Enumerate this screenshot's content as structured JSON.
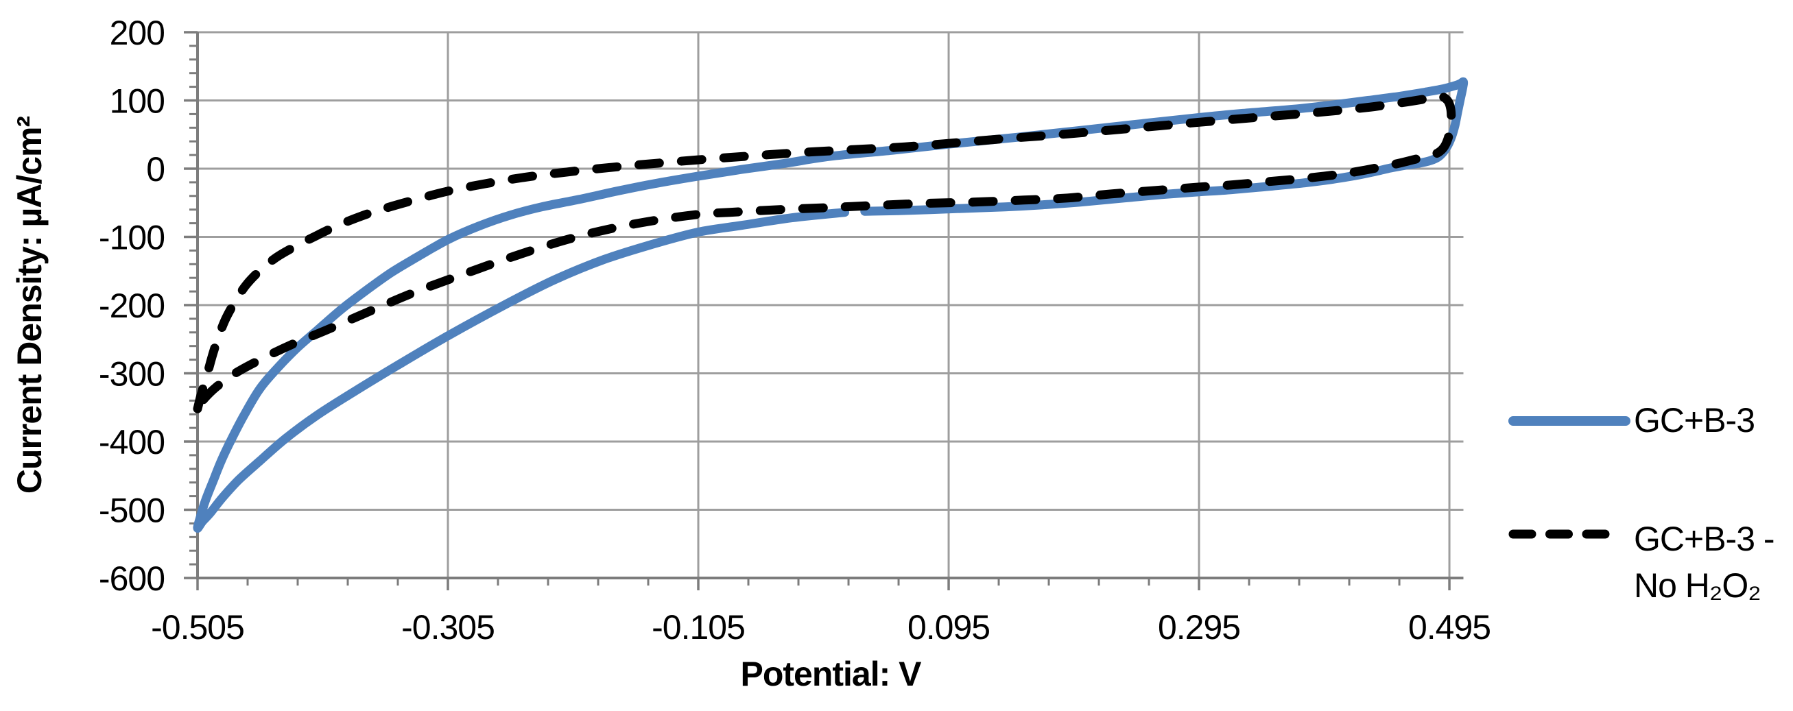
{
  "chart_data": {
    "type": "line",
    "title": "",
    "xlabel": "Potential: V",
    "ylabel": "Current Density: µA/cm²",
    "xlim": [
      -0.505,
      0.5062
    ],
    "ylim": [
      -600,
      200
    ],
    "x_ticks": [
      -0.505,
      -0.305,
      -0.105,
      0.095,
      0.295,
      0.495
    ],
    "x_tick_labels": [
      "-0.505",
      "-0.305",
      "-0.105",
      "0.095",
      "0.295",
      "0.495"
    ],
    "y_ticks": [
      200,
      100,
      0,
      -100,
      -200,
      -300,
      -400,
      -500,
      -600
    ],
    "y_tick_labels": [
      "200",
      "100",
      "0",
      "-100",
      "-200",
      "-300",
      "-400",
      "-500",
      "-600"
    ],
    "x_minor_tick_step": 0.04,
    "y_minor_tick_step": 20,
    "grid": true,
    "legend_position": "right",
    "colors": {
      "gridline": "#9E9E9E",
      "axis": "#7C7C7C",
      "tick": "#7C7C7C",
      "text": "#000000"
    },
    "series": [
      {
        "name": "GC+B-3",
        "legend_lines": [
          "GC+B-3"
        ],
        "color": "#4F81BD",
        "style": "solid",
        "points": [
          [
            0.012,
            -64
          ],
          [
            -0.03,
            -72
          ],
          [
            -0.07,
            -83
          ],
          [
            -0.105,
            -93
          ],
          [
            -0.14,
            -110
          ],
          [
            -0.18,
            -133
          ],
          [
            -0.22,
            -163
          ],
          [
            -0.26,
            -200
          ],
          [
            -0.305,
            -245
          ],
          [
            -0.345,
            -288
          ],
          [
            -0.38,
            -327
          ],
          [
            -0.41,
            -362
          ],
          [
            -0.435,
            -396
          ],
          [
            -0.455,
            -428
          ],
          [
            -0.472,
            -456
          ],
          [
            -0.485,
            -482
          ],
          [
            -0.495,
            -505
          ],
          [
            -0.501,
            -517
          ],
          [
            -0.505,
            -527
          ],
          [
            -0.503,
            -512
          ],
          [
            -0.499,
            -488
          ],
          [
            -0.493,
            -460
          ],
          [
            -0.486,
            -428
          ],
          [
            -0.478,
            -397
          ],
          [
            -0.468,
            -362
          ],
          [
            -0.455,
            -322
          ],
          [
            -0.44,
            -290
          ],
          [
            -0.425,
            -262
          ],
          [
            -0.41,
            -238
          ],
          [
            -0.39,
            -206
          ],
          [
            -0.37,
            -178
          ],
          [
            -0.35,
            -152
          ],
          [
            -0.33,
            -130
          ],
          [
            -0.305,
            -104
          ],
          [
            -0.28,
            -84
          ],
          [
            -0.255,
            -68
          ],
          [
            -0.23,
            -56
          ],
          [
            -0.2,
            -45
          ],
          [
            -0.17,
            -33
          ],
          [
            -0.14,
            -22
          ],
          [
            -0.105,
            -11
          ],
          [
            -0.07,
            -1
          ],
          [
            -0.035,
            8
          ],
          [
            0,
            18
          ],
          [
            0.05,
            27
          ],
          [
            0.095,
            36
          ],
          [
            0.15,
            46
          ],
          [
            0.2,
            56
          ],
          [
            0.25,
            66
          ],
          [
            0.295,
            75
          ],
          [
            0.33,
            81
          ],
          [
            0.37,
            87
          ],
          [
            0.4,
            93
          ],
          [
            0.43,
            100
          ],
          [
            0.455,
            106
          ],
          [
            0.475,
            112
          ],
          [
            0.49,
            117
          ],
          [
            0.5,
            122
          ],
          [
            0.504,
            125
          ],
          [
            0.5062,
            127
          ],
          [
            0.5055,
            117
          ],
          [
            0.5035,
            100
          ],
          [
            0.5015,
            82
          ],
          [
            0.4995,
            64
          ],
          [
            0.497,
            48
          ],
          [
            0.494,
            35
          ],
          [
            0.4905,
            25
          ],
          [
            0.486,
            17
          ],
          [
            0.48,
            12
          ],
          [
            0.471,
            8
          ],
          [
            0.46,
            5
          ],
          [
            0.448,
            1
          ],
          [
            0.436,
            -4
          ],
          [
            0.42,
            -10
          ],
          [
            0.4,
            -16
          ],
          [
            0.378,
            -21
          ],
          [
            0.35,
            -26
          ],
          [
            0.32,
            -31
          ],
          [
            0.295,
            -34
          ],
          [
            0.265,
            -38
          ],
          [
            0.235,
            -43
          ],
          [
            0.2,
            -49
          ],
          [
            0.17,
            -53
          ],
          [
            0.14,
            -56
          ],
          [
            0.11,
            -58
          ],
          [
            0.08,
            -60
          ],
          [
            0.055,
            -61.5
          ],
          [
            0.028,
            -62.5
          ]
        ]
      },
      {
        "name": "GC+B-3 - No H₂O₂",
        "legend_lines": [
          "GC+B-3 -",
          "No H₂O₂"
        ],
        "color": "#000000",
        "style": "dashed",
        "points": [
          [
            -0.505,
            -352
          ],
          [
            -0.502,
            -330
          ],
          [
            -0.498,
            -306
          ],
          [
            -0.493,
            -273
          ],
          [
            -0.488,
            -245
          ],
          [
            -0.482,
            -218
          ],
          [
            -0.474,
            -192
          ],
          [
            -0.466,
            -170
          ],
          [
            -0.455,
            -149
          ],
          [
            -0.442,
            -130
          ],
          [
            -0.428,
            -115
          ],
          [
            -0.412,
            -100
          ],
          [
            -0.395,
            -85
          ],
          [
            -0.375,
            -70
          ],
          [
            -0.355,
            -58
          ],
          [
            -0.33,
            -45
          ],
          [
            -0.305,
            -33
          ],
          [
            -0.275,
            -22
          ],
          [
            -0.245,
            -13
          ],
          [
            -0.215,
            -6
          ],
          [
            -0.185,
            0
          ],
          [
            -0.15,
            6
          ],
          [
            -0.105,
            13
          ],
          [
            -0.06,
            19
          ],
          [
            -0.02,
            24
          ],
          [
            0.02,
            28
          ],
          [
            0.06,
            32
          ],
          [
            0.095,
            37
          ],
          [
            0.14,
            44
          ],
          [
            0.19,
            51
          ],
          [
            0.24,
            59
          ],
          [
            0.295,
            68
          ],
          [
            0.34,
            75
          ],
          [
            0.38,
            81
          ],
          [
            0.41,
            86
          ],
          [
            0.435,
            91
          ],
          [
            0.458,
            97
          ],
          [
            0.475,
            102
          ],
          [
            0.4875,
            106
          ],
          [
            0.4935,
            100
          ],
          [
            0.496,
            88
          ],
          [
            0.4965,
            72
          ],
          [
            0.4955,
            56
          ],
          [
            0.4935,
            42
          ],
          [
            0.4905,
            31
          ],
          [
            0.4865,
            24
          ],
          [
            0.4815,
            20
          ],
          [
            0.475,
            17
          ],
          [
            0.466,
            13
          ],
          [
            0.455,
            8
          ],
          [
            0.442,
            3
          ],
          [
            0.428,
            -2
          ],
          [
            0.412,
            -7
          ],
          [
            0.395,
            -11
          ],
          [
            0.375,
            -15
          ],
          [
            0.35,
            -19
          ],
          [
            0.32,
            -24
          ],
          [
            0.295,
            -27
          ],
          [
            0.26,
            -32
          ],
          [
            0.225,
            -37
          ],
          [
            0.19,
            -43
          ],
          [
            0.155,
            -46
          ],
          [
            0.115,
            -49
          ],
          [
            0.075,
            -51
          ],
          [
            0.035,
            -54
          ],
          [
            0,
            -57
          ],
          [
            -0.04,
            -60
          ],
          [
            -0.08,
            -64
          ],
          [
            -0.105,
            -67
          ],
          [
            -0.14,
            -76
          ],
          [
            -0.175,
            -88
          ],
          [
            -0.21,
            -104
          ],
          [
            -0.25,
            -127
          ],
          [
            -0.29,
            -153
          ],
          [
            -0.33,
            -180
          ],
          [
            -0.365,
            -207
          ],
          [
            -0.4,
            -235
          ],
          [
            -0.43,
            -258
          ],
          [
            -0.455,
            -280
          ],
          [
            -0.475,
            -300
          ],
          [
            -0.49,
            -320
          ],
          [
            -0.5,
            -338
          ],
          [
            -0.505,
            -352
          ]
        ]
      }
    ]
  }
}
